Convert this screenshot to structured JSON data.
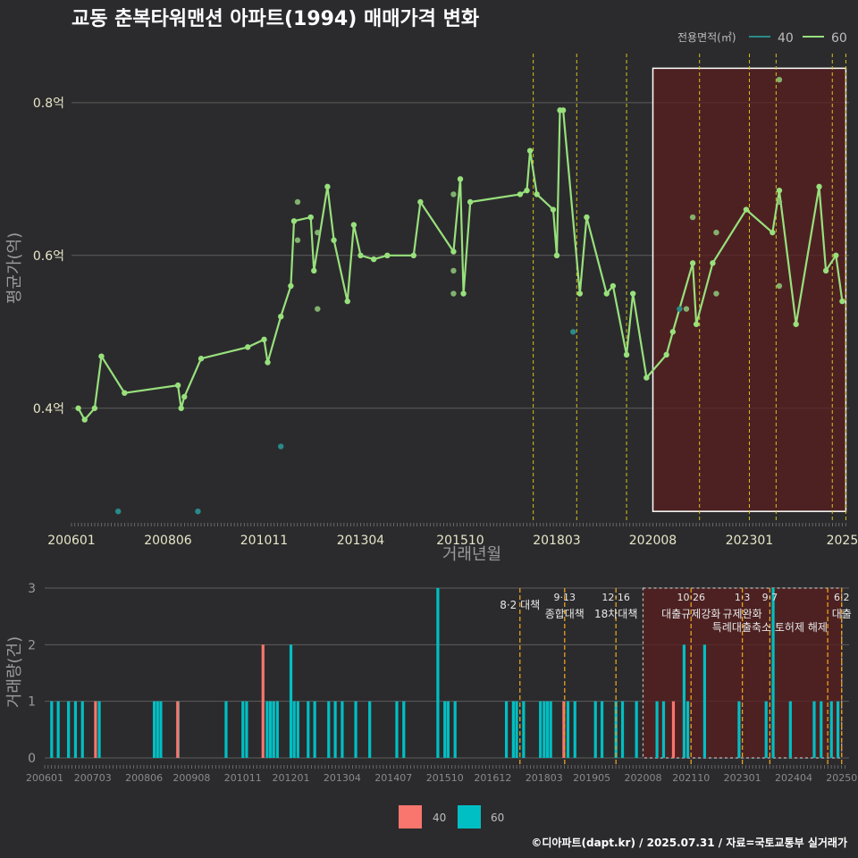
{
  "title": "교동 춘복타워맨션 아파트(1994) 매매가격 변화",
  "caption": "©디아파트(dapt.kr) / 2025.07.31 / 자료=국토교통부 실거래가",
  "colors": {
    "line60": "#98e07c",
    "point40": "#2a8a8a",
    "bar40": "#f8766d",
    "bar60": "#00bfc4",
    "vline": "#d4c21a",
    "vline_orange": "#e8a020",
    "shade": "#5a1f1f"
  },
  "chart_data": [
    {
      "type": "line",
      "title": "교동 춘복타워맨션 아파트(1994) 매매가격 변화",
      "xlabel": "거래년월",
      "ylabel": "평균가(억)",
      "xlim": [
        2006.0,
        2025.5
      ],
      "ylim": [
        0.25,
        0.87
      ],
      "x_ticks": [
        {
          "label": "200601",
          "x": 2006.0
        },
        {
          "label": "200806",
          "x": 2008.42
        },
        {
          "label": "201011",
          "x": 2010.83
        },
        {
          "label": "201304",
          "x": 2013.25
        },
        {
          "label": "201510",
          "x": 2015.75
        },
        {
          "label": "201803",
          "x": 2018.17
        },
        {
          "label": "202008",
          "x": 2020.58
        },
        {
          "label": "202301",
          "x": 2023.0
        },
        {
          "label": "2025",
          "x": 2025.33
        }
      ],
      "y_ticks": [
        {
          "label": "0.4억",
          "y": 0.4
        },
        {
          "label": "0.6억",
          "y": 0.6
        },
        {
          "label": "0.8억",
          "y": 0.8
        }
      ],
      "legend": {
        "title": "전용면적(㎡)",
        "entries": [
          "40",
          "60"
        ],
        "position": "top-right"
      },
      "series": [
        {
          "name": "60",
          "points": [
            [
              2006.17,
              0.4
            ],
            [
              2006.33,
              0.385
            ],
            [
              2006.58,
              0.4
            ],
            [
              2006.75,
              0.468
            ],
            [
              2007.33,
              0.42
            ],
            [
              2008.67,
              0.43
            ],
            [
              2008.75,
              0.4
            ],
            [
              2008.83,
              0.415
            ],
            [
              2009.25,
              0.465
            ],
            [
              2010.42,
              0.48
            ],
            [
              2010.83,
              0.49
            ],
            [
              2010.92,
              0.46
            ],
            [
              2011.25,
              0.52
            ],
            [
              2011.5,
              0.56
            ],
            [
              2011.58,
              0.645
            ],
            [
              2012.0,
              0.65
            ],
            [
              2012.08,
              0.58
            ],
            [
              2012.42,
              0.69
            ],
            [
              2012.58,
              0.62
            ],
            [
              2012.92,
              0.54
            ],
            [
              2013.08,
              0.64
            ],
            [
              2013.25,
              0.6
            ],
            [
              2013.58,
              0.595
            ],
            [
              2013.92,
              0.6
            ],
            [
              2014.58,
              0.6
            ],
            [
              2014.75,
              0.67
            ],
            [
              2015.58,
              0.605
            ],
            [
              2015.75,
              0.7
            ],
            [
              2015.83,
              0.55
            ],
            [
              2016.0,
              0.67
            ],
            [
              2017.25,
              0.68
            ],
            [
              2017.42,
              0.685
            ],
            [
              2017.5,
              0.737
            ],
            [
              2017.67,
              0.68
            ],
            [
              2018.08,
              0.66
            ],
            [
              2018.17,
              0.6
            ],
            [
              2018.25,
              0.79
            ],
            [
              2018.33,
              0.79
            ],
            [
              2018.75,
              0.55
            ],
            [
              2018.92,
              0.65
            ],
            [
              2019.42,
              0.55
            ],
            [
              2019.58,
              0.56
            ],
            [
              2019.92,
              0.47
            ],
            [
              2020.08,
              0.55
            ],
            [
              2020.42,
              0.44
            ],
            [
              2020.92,
              0.47
            ],
            [
              2021.08,
              0.5
            ],
            [
              2021.58,
              0.59
            ],
            [
              2021.67,
              0.51
            ],
            [
              2022.08,
              0.59
            ],
            [
              2022.92,
              0.66
            ],
            [
              2023.58,
              0.63
            ],
            [
              2023.75,
              0.685
            ],
            [
              2024.17,
              0.51
            ],
            [
              2024.75,
              0.69
            ],
            [
              2024.92,
              0.58
            ],
            [
              2025.17,
              0.6
            ],
            [
              2025.33,
              0.54
            ]
          ]
        },
        {
          "name": "60-extra",
          "points": [
            [
              2011.67,
              0.67
            ],
            [
              2011.67,
              0.62
            ],
            [
              2012.17,
              0.63
            ],
            [
              2012.17,
              0.53
            ],
            [
              2015.58,
              0.68
            ],
            [
              2015.58,
              0.58
            ],
            [
              2015.58,
              0.55
            ],
            [
              2021.58,
              0.65
            ],
            [
              2021.42,
              0.53
            ],
            [
              2022.17,
              0.63
            ],
            [
              2022.17,
              0.55
            ],
            [
              2023.75,
              0.67
            ],
            [
              2023.75,
              0.56
            ],
            [
              2023.75,
              0.83
            ]
          ]
        },
        {
          "name": "40",
          "points": [
            [
              2007.17,
              0.265
            ],
            [
              2009.17,
              0.265
            ],
            [
              2011.25,
              0.35
            ],
            [
              2018.58,
              0.5
            ],
            [
              2021.25,
              0.53
            ]
          ]
        }
      ],
      "vlines": [
        2017.58,
        2018.67,
        2019.92,
        2021.75,
        2023.0,
        2023.67,
        2025.08,
        2025.42
      ],
      "shade": [
        2020.58,
        2025.5
      ]
    },
    {
      "type": "bar",
      "xlabel": "",
      "ylabel": "거래량(건)",
      "xlim": [
        2006.0,
        2025.6
      ],
      "ylim": [
        0,
        3
      ],
      "y_ticks": [
        "0",
        "1",
        "2",
        "3"
      ],
      "x_ticks": [
        {
          "label": "200601",
          "x": 2006.0
        },
        {
          "label": "200703",
          "x": 2007.17
        },
        {
          "label": "200806",
          "x": 2008.42
        },
        {
          "label": "200908",
          "x": 2009.58
        },
        {
          "label": "201011",
          "x": 2010.83
        },
        {
          "label": "201201",
          "x": 2012.0
        },
        {
          "label": "201304",
          "x": 2013.25
        },
        {
          "label": "201407",
          "x": 2014.5
        },
        {
          "label": "201510",
          "x": 2015.75
        },
        {
          "label": "201612",
          "x": 2016.92
        },
        {
          "label": "201803",
          "x": 2018.17
        },
        {
          "label": "201905",
          "x": 2019.33
        },
        {
          "label": "202008",
          "x": 2020.58
        },
        {
          "label": "202110",
          "x": 2021.75
        },
        {
          "label": "202301",
          "x": 2023.0
        },
        {
          "label": "202404",
          "x": 2024.25
        },
        {
          "label": "20250",
          "x": 2025.42
        }
      ],
      "legend": {
        "entries": [
          "40",
          "60"
        ],
        "position": "bottom"
      },
      "series": [
        {
          "name": "40",
          "bars": [
            [
              2007.17,
              1
            ],
            [
              2009.17,
              1
            ],
            [
              2011.25,
              2
            ],
            [
              2018.58,
              1
            ],
            [
              2021.25,
              1
            ]
          ]
        },
        {
          "name": "60",
          "bars": [
            [
              2006.17,
              1
            ],
            [
              2006.33,
              1
            ],
            [
              2006.58,
              1
            ],
            [
              2006.75,
              1
            ],
            [
              2006.92,
              1
            ],
            [
              2007.33,
              1
            ],
            [
              2008.67,
              1
            ],
            [
              2008.75,
              1
            ],
            [
              2008.83,
              1
            ],
            [
              2009.25,
              1
            ],
            [
              2010.42,
              1
            ],
            [
              2010.83,
              1
            ],
            [
              2010.92,
              1
            ],
            [
              2011.42,
              1
            ],
            [
              2011.5,
              1
            ],
            [
              2011.58,
              1
            ],
            [
              2011.67,
              1
            ],
            [
              2012.0,
              2
            ],
            [
              2012.08,
              1
            ],
            [
              2012.17,
              1
            ],
            [
              2012.42,
              1
            ],
            [
              2012.58,
              1
            ],
            [
              2012.92,
              1
            ],
            [
              2013.08,
              1
            ],
            [
              2013.25,
              1
            ],
            [
              2013.58,
              1
            ],
            [
              2013.92,
              1
            ],
            [
              2014.58,
              1
            ],
            [
              2014.75,
              1
            ],
            [
              2015.58,
              3
            ],
            [
              2015.75,
              1
            ],
            [
              2015.83,
              1
            ],
            [
              2016.0,
              1
            ],
            [
              2017.25,
              1
            ],
            [
              2017.42,
              1
            ],
            [
              2017.5,
              1
            ],
            [
              2017.67,
              1
            ],
            [
              2018.08,
              1
            ],
            [
              2018.17,
              1
            ],
            [
              2018.25,
              1
            ],
            [
              2018.33,
              1
            ],
            [
              2018.75,
              1
            ],
            [
              2018.92,
              1
            ],
            [
              2019.42,
              1
            ],
            [
              2019.58,
              1
            ],
            [
              2019.92,
              1
            ],
            [
              2020.08,
              1
            ],
            [
              2020.42,
              1
            ],
            [
              2020.92,
              1
            ],
            [
              2021.08,
              1
            ],
            [
              2021.58,
              2
            ],
            [
              2021.67,
              1
            ],
            [
              2022.08,
              2
            ],
            [
              2022.92,
              1
            ],
            [
              2023.58,
              1
            ],
            [
              2023.75,
              3
            ],
            [
              2024.17,
              1
            ],
            [
              2024.75,
              1
            ],
            [
              2024.92,
              1
            ],
            [
              2025.17,
              1
            ],
            [
              2025.33,
              1
            ]
          ]
        }
      ],
      "annotations": [
        {
          "x": 2017.58,
          "line1": "8·2 대책",
          "line2": ""
        },
        {
          "x": 2018.67,
          "line1": "9·13",
          "line2": "종합대책"
        },
        {
          "x": 2019.92,
          "line1": "12·16",
          "line2": "18차대책"
        },
        {
          "x": 2021.75,
          "line1": "10·26",
          "line2": "대출규제강화"
        },
        {
          "x": 2023.0,
          "line1": "1·3",
          "line2": "규제완화"
        },
        {
          "x": 2023.67,
          "line1": "9·7",
          "line2": "특례대출축소 토허제 해제"
        },
        {
          "x": 2025.42,
          "line1": "6·2",
          "line2": "대출"
        }
      ],
      "vlines": [
        2017.58,
        2018.67,
        2019.92,
        2021.75,
        2023.0,
        2023.67,
        2025.08,
        2025.42
      ],
      "shade": [
        2020.58,
        2025.6
      ]
    }
  ]
}
